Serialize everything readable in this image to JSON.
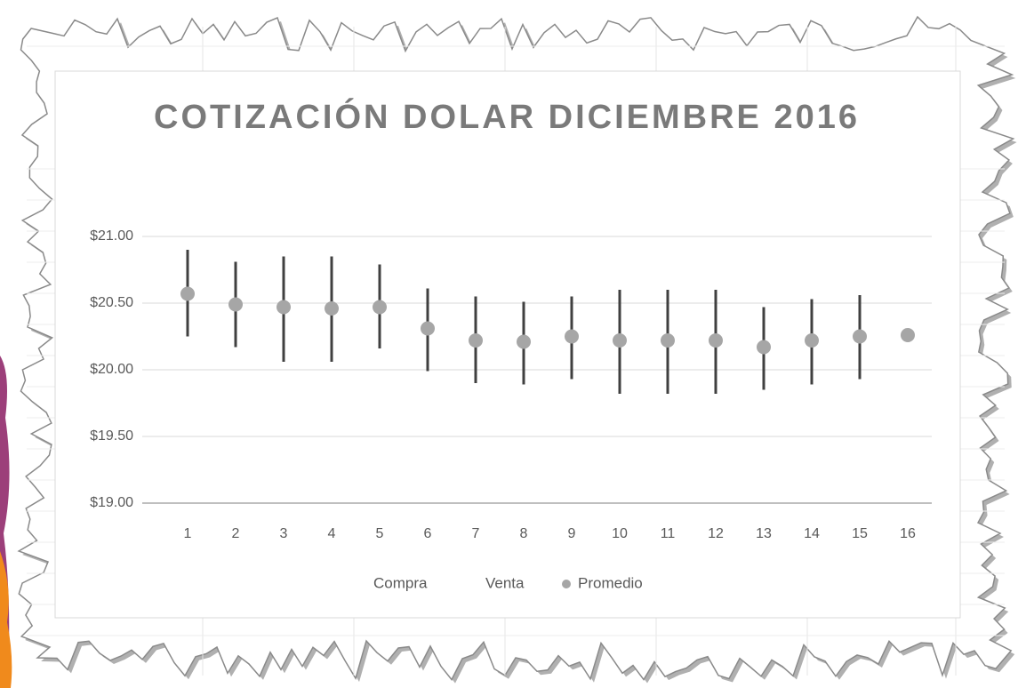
{
  "chart_data": {
    "type": "hilo",
    "title": "COTIZACIÓN DOLAR DICIEMBRE 2016",
    "categories": [
      "1",
      "2",
      "3",
      "4",
      "5",
      "6",
      "7",
      "8",
      "9",
      "10",
      "11",
      "12",
      "13",
      "14",
      "15",
      "16"
    ],
    "series": [
      {
        "name": "Compra",
        "color": "#404040",
        "values": [
          20.25,
          20.17,
          20.06,
          20.06,
          20.16,
          19.99,
          19.9,
          19.89,
          19.93,
          19.82,
          19.82,
          19.82,
          19.85,
          19.89,
          19.93,
          null
        ]
      },
      {
        "name": "Venta",
        "color": "#404040",
        "values": [
          20.9,
          20.81,
          20.85,
          20.85,
          20.79,
          20.61,
          20.55,
          20.51,
          20.55,
          20.6,
          20.6,
          20.6,
          20.47,
          20.53,
          20.56,
          null
        ]
      },
      {
        "name": "Promedio",
        "color": "#a6a6a6",
        "values": [
          20.57,
          20.49,
          20.47,
          20.46,
          20.47,
          20.31,
          20.22,
          20.21,
          20.25,
          20.22,
          20.22,
          20.22,
          20.17,
          20.22,
          20.25,
          20.26
        ]
      }
    ],
    "ylim": [
      19,
      21
    ],
    "yticks": [
      {
        "value": 19,
        "label": "$19.00"
      },
      {
        "value": 19.5,
        "label": "$19.50"
      },
      {
        "value": 20,
        "label": "$20.00"
      },
      {
        "value": 20.5,
        "label": "$20.50"
      },
      {
        "value": 21,
        "label": "$21.00"
      }
    ],
    "grid": true,
    "legend": "bottom"
  }
}
